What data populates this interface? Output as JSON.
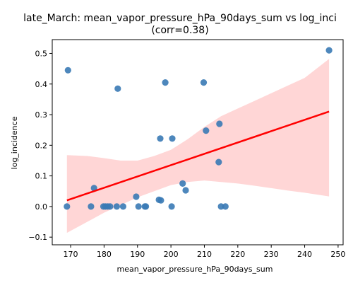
{
  "chart_data": {
    "type": "scatter",
    "title_line1": "late_March: mean_vapor_pressure_hPa_90days_sum vs log_inci",
    "title_line2": "(corr=0.38)",
    "xlabel": "mean_vapor_pressure_hPa_90days_sum",
    "ylabel": "log_incidence",
    "xlim": [
      164.5,
      251.5
    ],
    "ylim": [
      -0.125,
      0.545
    ],
    "xticks": [
      170,
      180,
      190,
      200,
      210,
      220,
      230,
      240,
      250
    ],
    "yticks": [
      -0.1,
      0.0,
      0.1,
      0.2,
      0.3,
      0.4,
      0.5
    ],
    "ytick_labels": [
      "−0.1",
      "0.0",
      "0.1",
      "0.2",
      "0.3",
      "0.4",
      "0.5"
    ],
    "grid": false,
    "points": [
      {
        "x": 168.9,
        "y": 0.0
      },
      {
        "x": 169.2,
        "y": 0.445
      },
      {
        "x": 176.1,
        "y": 0.0
      },
      {
        "x": 177.0,
        "y": 0.06
      },
      {
        "x": 179.8,
        "y": 0.0
      },
      {
        "x": 180.4,
        "y": 0.0
      },
      {
        "x": 181.1,
        "y": 0.0
      },
      {
        "x": 181.8,
        "y": 0.0
      },
      {
        "x": 183.8,
        "y": 0.0
      },
      {
        "x": 184.1,
        "y": 0.385
      },
      {
        "x": 185.7,
        "y": 0.0
      },
      {
        "x": 189.6,
        "y": 0.032
      },
      {
        "x": 190.3,
        "y": 0.0
      },
      {
        "x": 192.2,
        "y": 0.0
      },
      {
        "x": 192.5,
        "y": 0.0
      },
      {
        "x": 196.4,
        "y": 0.022
      },
      {
        "x": 196.8,
        "y": 0.222
      },
      {
        "x": 197.0,
        "y": 0.02
      },
      {
        "x": 198.3,
        "y": 0.405
      },
      {
        "x": 200.2,
        "y": 0.0
      },
      {
        "x": 200.4,
        "y": 0.222
      },
      {
        "x": 203.5,
        "y": 0.075
      },
      {
        "x": 204.4,
        "y": 0.053
      },
      {
        "x": 209.8,
        "y": 0.405
      },
      {
        "x": 210.5,
        "y": 0.248
      },
      {
        "x": 214.3,
        "y": 0.145
      },
      {
        "x": 214.5,
        "y": 0.27
      },
      {
        "x": 215.0,
        "y": 0.0
      },
      {
        "x": 216.3,
        "y": 0.0
      },
      {
        "x": 247.3,
        "y": 0.51
      }
    ],
    "regression": {
      "x": [
        168.9,
        247.3
      ],
      "y": [
        0.02,
        0.31
      ]
    },
    "confidence_band": {
      "x": [
        168.9,
        175,
        180,
        185,
        190,
        195,
        200,
        205,
        210,
        215,
        220,
        225,
        230,
        235,
        240,
        247.3
      ],
      "upper": [
        0.168,
        0.165,
        0.158,
        0.15,
        0.15,
        0.165,
        0.185,
        0.22,
        0.26,
        0.295,
        0.32,
        0.345,
        0.37,
        0.395,
        0.42,
        0.482
      ],
      "lower": [
        -0.086,
        -0.05,
        -0.02,
        0.005,
        0.03,
        0.05,
        0.07,
        0.08,
        0.085,
        0.08,
        0.075,
        0.068,
        0.06,
        0.052,
        0.045,
        0.033
      ]
    },
    "colors": {
      "points": "#3a7ab5",
      "line": "#ff0000",
      "band": "#ffc8c8"
    }
  }
}
